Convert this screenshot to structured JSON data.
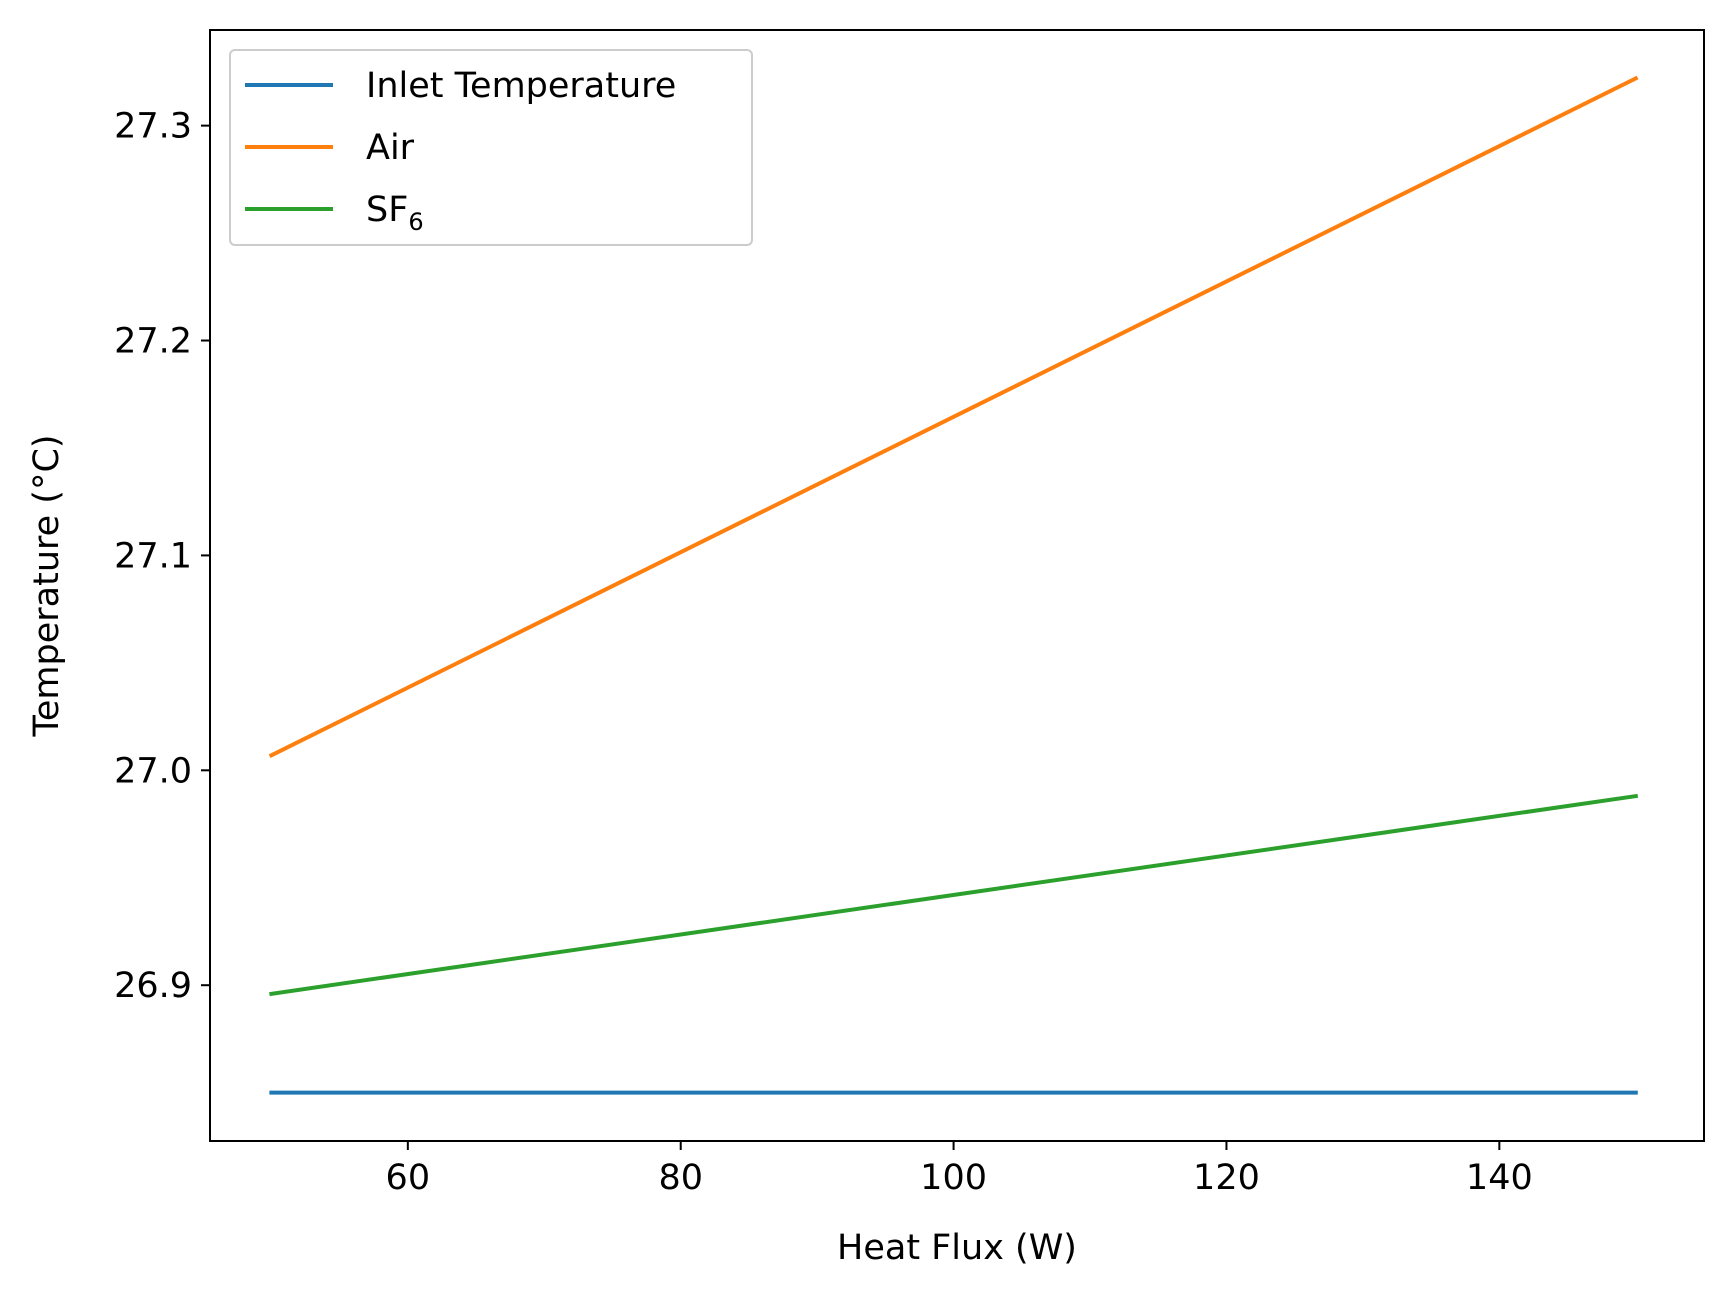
{
  "chart_data": {
    "type": "line",
    "title": "",
    "xlabel": "Heat Flux (W)",
    "ylabel": "Temperature (°C)",
    "xlim": [
      45.5,
      155
    ],
    "ylim": [
      26.8275,
      27.3445
    ],
    "xticks": [
      60,
      80,
      100,
      120,
      140
    ],
    "xtick_labels": [
      "60",
      "80",
      "100",
      "120",
      "140"
    ],
    "yticks": [
      26.9,
      27.0,
      27.1,
      27.2,
      27.3
    ],
    "ytick_labels": [
      "26.9",
      "27.0",
      "27.1",
      "27.2",
      "27.3"
    ],
    "grid": false,
    "legend_position": "top-left",
    "series": [
      {
        "name": "Inlet Temperature",
        "label_main": "Inlet Temperature",
        "label_sub": "",
        "color": "#1f77b4",
        "x": [
          50,
          150
        ],
        "y": [
          26.85,
          26.85
        ]
      },
      {
        "name": "Air",
        "label_main": "Air",
        "label_sub": "",
        "color": "#ff7f0e",
        "x": [
          50,
          150
        ],
        "y": [
          27.007,
          27.322
        ]
      },
      {
        "name": "SF6",
        "label_main": "SF",
        "label_sub": "6",
        "color": "#2ca02c",
        "x": [
          50,
          150
        ],
        "y": [
          26.896,
          26.988
        ]
      }
    ]
  }
}
